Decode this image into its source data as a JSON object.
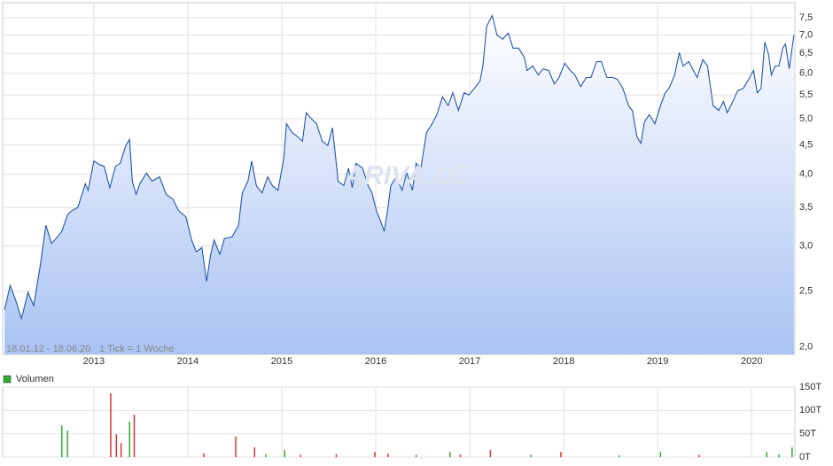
{
  "chart_data": [
    {
      "type": "area",
      "date_range": "18.01.12 - 18.06.20",
      "tick_note": "1 Tick = 1 Woche",
      "watermark": "ARIVA.DE",
      "log_scale": true,
      "grid": true,
      "color": "#2456a8",
      "fill_color": "#a9c3f3",
      "x": [
        2012.05,
        2012.11,
        2012.17,
        2012.23,
        2012.3,
        2012.36,
        2012.43,
        2012.49,
        2012.55,
        2012.6,
        2012.66,
        2012.72,
        2012.77,
        2012.83,
        2012.91,
        2012.94,
        2013.0,
        2013.06,
        2013.11,
        2013.17,
        2013.23,
        2013.28,
        2013.34,
        2013.38,
        2013.41,
        2013.45,
        2013.49,
        2013.56,
        2013.62,
        2013.7,
        2013.77,
        2013.84,
        2013.9,
        2013.98,
        2014.04,
        2014.09,
        2014.15,
        2014.2,
        2014.24,
        2014.28,
        2014.34,
        2014.39,
        2014.47,
        2014.54,
        2014.58,
        2014.64,
        2014.68,
        2014.73,
        2014.79,
        2014.85,
        2014.9,
        2014.96,
        2015.02,
        2015.05,
        2015.11,
        2015.17,
        2015.22,
        2015.26,
        2015.32,
        2015.37,
        2015.43,
        2015.49,
        2015.54,
        2015.6,
        2015.66,
        2015.71,
        2015.75,
        2015.79,
        2015.86,
        2015.92,
        2015.96,
        2016.01,
        2016.05,
        2016.09,
        2016.13,
        2016.16,
        2016.22,
        2016.28,
        2016.33,
        2016.39,
        2016.43,
        2016.48,
        2016.54,
        2016.6,
        2016.65,
        2016.71,
        2016.77,
        2016.82,
        2016.88,
        2016.94,
        2016.99,
        2017.05,
        2017.11,
        2017.14,
        2017.18,
        2017.24,
        2017.29,
        2017.35,
        2017.41,
        2017.46,
        2017.52,
        2017.58,
        2017.61,
        2017.67,
        2017.73,
        2017.78,
        2017.84,
        2017.9,
        2017.95,
        2018.01,
        2018.07,
        2018.12,
        2018.18,
        2018.24,
        2018.29,
        2018.35,
        2018.4,
        2018.46,
        2018.52,
        2018.57,
        2018.63,
        2018.69,
        2018.73,
        2018.78,
        2018.82,
        2018.86,
        2018.91,
        2018.97,
        2019.03,
        2019.08,
        2019.12,
        2019.18,
        2019.23,
        2019.27,
        2019.33,
        2019.38,
        2019.42,
        2019.48,
        2019.53,
        2019.59,
        2019.65,
        2019.7,
        2019.74,
        2019.8,
        2019.85,
        2019.91,
        2019.97,
        2020.02,
        2020.06,
        2020.1,
        2020.14,
        2020.18,
        2020.21,
        2020.25,
        2020.29,
        2020.33,
        2020.36,
        2020.4,
        2020.45
      ],
      "values": [
        2.32,
        2.56,
        2.41,
        2.24,
        2.49,
        2.36,
        2.77,
        3.26,
        3.03,
        3.09,
        3.18,
        3.4,
        3.46,
        3.5,
        3.85,
        3.75,
        4.22,
        4.16,
        4.13,
        3.79,
        4.13,
        4.18,
        4.49,
        4.6,
        3.89,
        3.69,
        3.85,
        4.02,
        3.89,
        3.96,
        3.69,
        3.62,
        3.46,
        3.37,
        3.07,
        2.93,
        2.98,
        2.6,
        2.88,
        3.07,
        2.9,
        3.09,
        3.11,
        3.26,
        3.71,
        3.89,
        4.22,
        3.82,
        3.71,
        3.96,
        3.82,
        3.75,
        4.25,
        4.9,
        4.73,
        4.65,
        4.57,
        5.12,
        4.99,
        4.9,
        4.57,
        4.49,
        4.82,
        3.89,
        3.82,
        4.1,
        3.79,
        4.18,
        4.1,
        3.82,
        3.71,
        3.44,
        3.32,
        3.18,
        3.5,
        3.82,
        3.96,
        3.75,
        4.03,
        3.75,
        4.18,
        4.1,
        4.73,
        4.9,
        5.08,
        5.46,
        5.27,
        5.55,
        5.17,
        5.55,
        5.5,
        5.65,
        5.82,
        6.18,
        7.25,
        7.57,
        7.0,
        6.88,
        7.05,
        6.64,
        6.64,
        6.4,
        6.07,
        6.18,
        5.96,
        6.11,
        6.07,
        5.75,
        5.9,
        6.25,
        6.07,
        5.96,
        5.69,
        5.9,
        5.9,
        6.29,
        6.29,
        5.9,
        5.9,
        5.86,
        5.65,
        5.27,
        5.17,
        4.65,
        4.53,
        4.94,
        5.08,
        4.9,
        5.27,
        5.55,
        5.65,
        5.96,
        6.52,
        6.18,
        6.29,
        6.07,
        5.9,
        6.34,
        6.18,
        5.27,
        5.17,
        5.36,
        5.12,
        5.36,
        5.59,
        5.65,
        5.86,
        6.07,
        5.55,
        5.65,
        6.8,
        6.47,
        5.96,
        6.18,
        6.18,
        6.64,
        6.75,
        6.11,
        7.0
      ],
      "xlim": [
        2012.03,
        2020.46
      ],
      "xticks": [
        2013,
        2014,
        2015,
        2016,
        2017,
        2018,
        2019,
        2020
      ],
      "ylim": [
        1.94,
        7.97
      ],
      "yticks": [
        {
          "value": 2.0,
          "label": "2,0"
        },
        {
          "value": 2.5,
          "label": "2,5"
        },
        {
          "value": 3.0,
          "label": "3,0"
        },
        {
          "value": 3.5,
          "label": "3,5"
        },
        {
          "value": 4.0,
          "label": "4,0"
        },
        {
          "value": 4.5,
          "label": "4,5"
        },
        {
          "value": 5.0,
          "label": "5,0"
        },
        {
          "value": 5.5,
          "label": "5,5"
        },
        {
          "value": 6.0,
          "label": "6,0"
        },
        {
          "value": 6.5,
          "label": "6,5"
        },
        {
          "value": 7.0,
          "label": "7,0"
        },
        {
          "value": 7.5,
          "label": "7,5"
        }
      ]
    },
    {
      "type": "bar",
      "legend": "Volumen",
      "color": "#33aa33",
      "grid": true,
      "x": [
        2012.66,
        2012.72,
        2013.18,
        2013.24,
        2013.29,
        2013.38,
        2013.43,
        2014.17,
        2014.51,
        2014.71,
        2014.83,
        2015.03,
        2015.2,
        2015.58,
        2015.99,
        2016.13,
        2016.43,
        2016.79,
        2016.9,
        2017.22,
        2017.65,
        2017.97,
        2018.59,
        2019.03,
        2019.44,
        2020.16,
        2020.29,
        2020.43
      ],
      "values": [
        68000,
        57000,
        137000,
        49000,
        30000,
        76000,
        91000,
        8000,
        44000,
        21000,
        6000,
        15000,
        5000,
        6000,
        11000,
        8000,
        5000,
        11000,
        6000,
        15000,
        5000,
        11000,
        4000,
        11000,
        5000,
        11000,
        6000,
        21000
      ],
      "colors": [
        "#33aa33",
        "#33aa33",
        "#dd3333",
        "#dd3333",
        "#dd3333",
        "#33aa33",
        "#dd3333",
        "#dd3333",
        "#dd3333",
        "#dd3333",
        "#33aa33",
        "#33aa33",
        "#dd3333",
        "#dd3333",
        "#dd3333",
        "#dd3333",
        "#33aa33",
        "#33aa33",
        "#dd3333",
        "#dd3333",
        "#33aa33",
        "#dd3333",
        "#33aa33",
        "#33aa33",
        "#dd3333",
        "#33aa33",
        "#33aa33",
        "#33aa33"
      ],
      "xlim": [
        2012.03,
        2020.46
      ],
      "xticks": [
        2013,
        2014,
        2015,
        2016,
        2017,
        2018,
        2019,
        2020
      ],
      "ylim": [
        0,
        150000
      ],
      "yticks": [
        {
          "value": 0,
          "label": "0T"
        },
        {
          "value": 50000,
          "label": "50T"
        },
        {
          "value": 100000,
          "label": "100T"
        },
        {
          "value": 150000,
          "label": "150T"
        }
      ]
    }
  ]
}
